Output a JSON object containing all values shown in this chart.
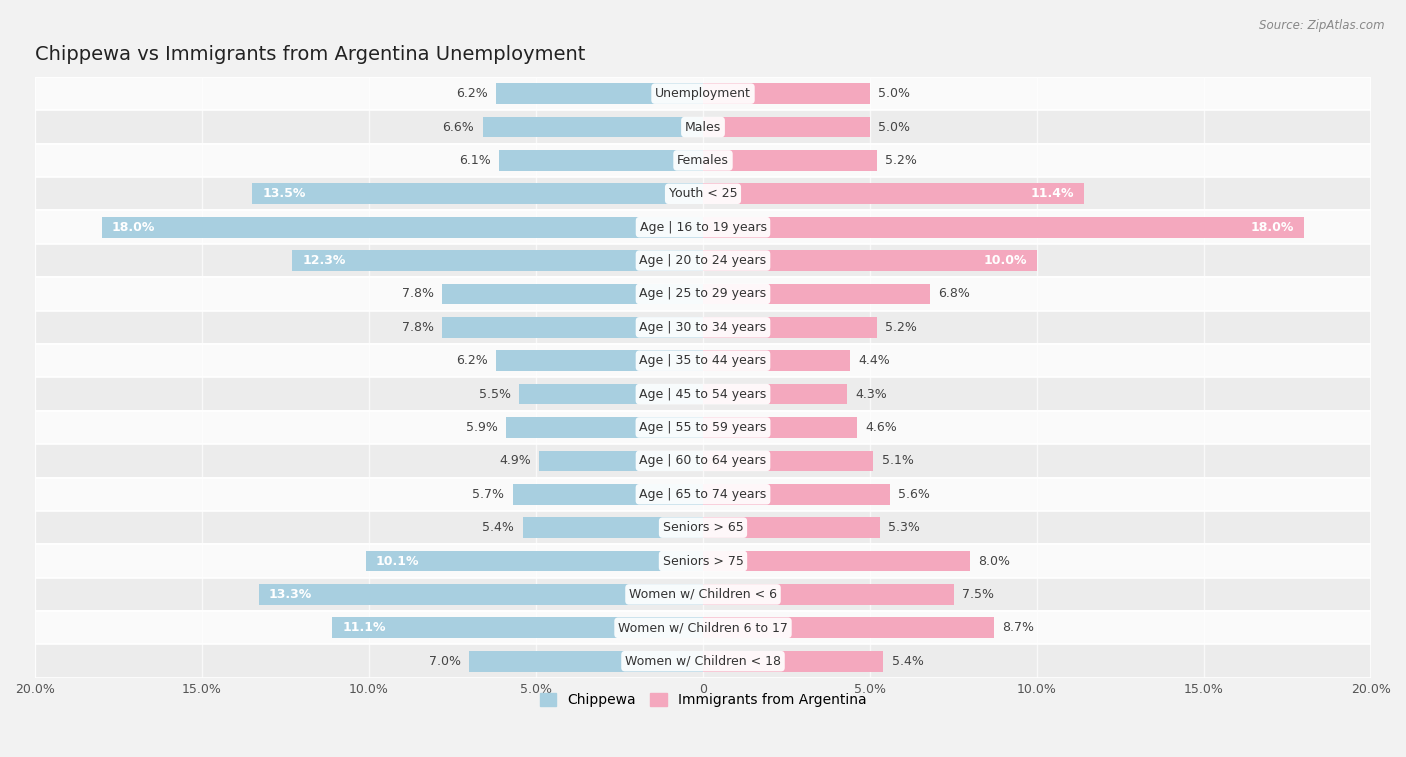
{
  "title": "Chippewa vs Immigrants from Argentina Unemployment",
  "source": "Source: ZipAtlas.com",
  "categories": [
    "Unemployment",
    "Males",
    "Females",
    "Youth < 25",
    "Age | 16 to 19 years",
    "Age | 20 to 24 years",
    "Age | 25 to 29 years",
    "Age | 30 to 34 years",
    "Age | 35 to 44 years",
    "Age | 45 to 54 years",
    "Age | 55 to 59 years",
    "Age | 60 to 64 years",
    "Age | 65 to 74 years",
    "Seniors > 65",
    "Seniors > 75",
    "Women w/ Children < 6",
    "Women w/ Children 6 to 17",
    "Women w/ Children < 18"
  ],
  "chippewa": [
    6.2,
    6.6,
    6.1,
    13.5,
    18.0,
    12.3,
    7.8,
    7.8,
    6.2,
    5.5,
    5.9,
    4.9,
    5.7,
    5.4,
    10.1,
    13.3,
    11.1,
    7.0
  ],
  "argentina": [
    5.0,
    5.0,
    5.2,
    11.4,
    18.0,
    10.0,
    6.8,
    5.2,
    4.4,
    4.3,
    4.6,
    5.1,
    5.6,
    5.3,
    8.0,
    7.5,
    8.7,
    5.4
  ],
  "chippewa_color": "#a8cfe0",
  "argentina_color": "#f4a8be",
  "bg_color": "#f2f2f2",
  "row_bg_even": "#fafafa",
  "row_bg_odd": "#ececec",
  "axis_max": 20.0,
  "bar_height": 0.62,
  "title_fontsize": 14,
  "label_fontsize": 9,
  "tick_fontsize": 9,
  "legend_fontsize": 10,
  "white_text_threshold_chip": 10.0,
  "white_text_threshold_arg": 10.0
}
